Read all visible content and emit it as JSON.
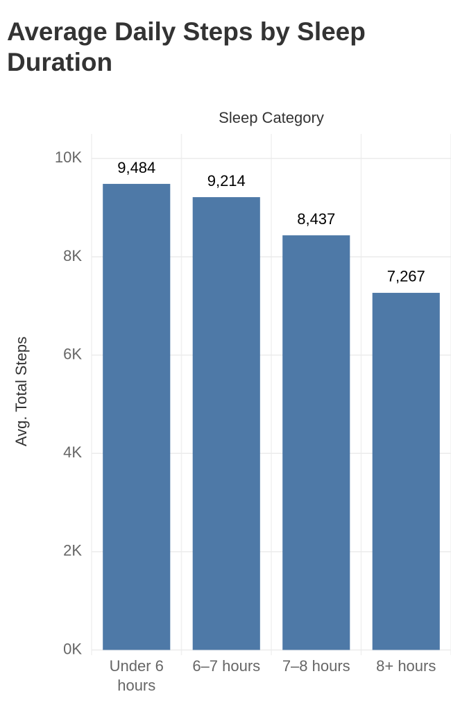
{
  "chart_data": {
    "type": "bar",
    "title": "Average Daily Steps by Sleep Duration",
    "x_label": "Sleep Category",
    "y_label": "Avg. Total Steps",
    "categories": [
      "Under 6 hours",
      "6–7 hours",
      "7–8 hours",
      "8+ hours"
    ],
    "values": [
      9484,
      9214,
      8437,
      7267
    ],
    "value_labels": [
      "9,484",
      "9,214",
      "8,437",
      "7,267"
    ],
    "color": "#4e79a7",
    "ylim": [
      -50,
      10500
    ],
    "yticks": [
      {
        "value": 0,
        "label": "0K"
      },
      {
        "value": 2000,
        "label": "2K"
      },
      {
        "value": 4000,
        "label": "4K"
      },
      {
        "value": 6000,
        "label": "6K"
      },
      {
        "value": 8000,
        "label": "8K"
      },
      {
        "value": 10000,
        "label": "10K"
      }
    ],
    "grid": true
  }
}
